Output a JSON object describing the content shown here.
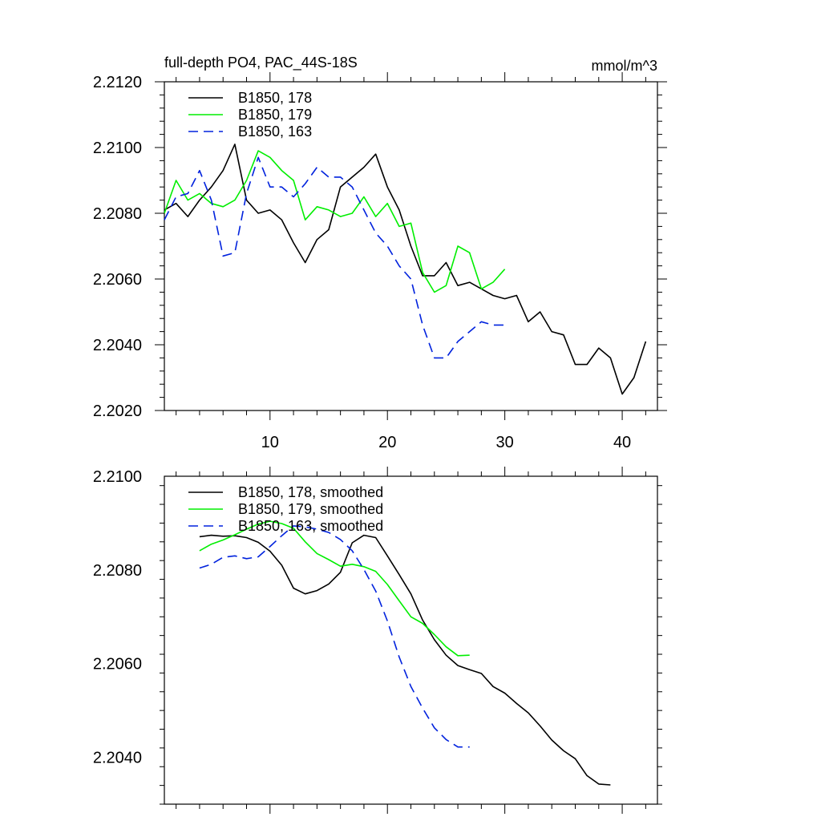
{
  "chart_data": [
    {
      "type": "line",
      "title": "full-depth PO4, PAC_44S-18S",
      "units": "mmol/m^3",
      "xlim": [
        1.0,
        43.0
      ],
      "ylim": [
        2.202,
        2.212
      ],
      "xticks": [
        10,
        20,
        30,
        40
      ],
      "xtick_labels": [
        "10",
        "20",
        "30",
        "40"
      ],
      "yticks": [
        2.202,
        2.204,
        2.206,
        2.208,
        2.21,
        2.212
      ],
      "ytick_labels": [
        "2.2020",
        "2.2040",
        "2.2060",
        "2.2080",
        "2.2100",
        "2.2120"
      ],
      "legend_position": "top-left",
      "series": [
        {
          "name": "B1850, 178",
          "color": "#000000",
          "dash": "solid",
          "x": [
            1,
            2,
            3,
            4,
            5,
            6,
            7,
            8,
            9,
            10,
            11,
            12,
            13,
            14,
            15,
            16,
            17,
            18,
            19,
            20,
            21,
            22,
            23,
            24,
            25,
            26,
            27,
            28,
            29,
            30,
            31,
            32,
            33,
            34,
            35,
            36,
            37,
            38,
            39,
            40,
            41,
            42
          ],
          "values": [
            2.2081,
            2.2083,
            2.2079,
            2.2084,
            2.2088,
            2.2093,
            2.2101,
            2.2084,
            2.208,
            2.2081,
            2.2078,
            2.2071,
            2.2065,
            2.2072,
            2.2075,
            2.2088,
            2.2091,
            2.2094,
            2.2098,
            2.2088,
            2.2081,
            2.207,
            2.2061,
            2.2061,
            2.2065,
            2.2058,
            2.2059,
            2.2057,
            2.2055,
            2.2054,
            2.2055,
            2.2047,
            2.205,
            2.2044,
            2.2043,
            2.2034,
            2.2034,
            2.2039,
            2.2036,
            2.2025,
            2.203,
            2.2041
          ]
        },
        {
          "name": "B1850, 179",
          "color": "#00ee00",
          "dash": "solid",
          "x": [
            1,
            2,
            3,
            4,
            5,
            6,
            7,
            8,
            9,
            10,
            11,
            12,
            13,
            14,
            15,
            16,
            17,
            18,
            19,
            20,
            21,
            22,
            23,
            24,
            25,
            26,
            27,
            28,
            29,
            30
          ],
          "values": [
            2.208,
            2.209,
            2.2084,
            2.2086,
            2.2083,
            2.2082,
            2.2084,
            2.209,
            2.2099,
            2.2097,
            2.2093,
            2.209,
            2.2078,
            2.2082,
            2.2081,
            2.2079,
            2.208,
            2.2085,
            2.2079,
            2.2083,
            2.2076,
            2.2077,
            2.2062,
            2.2056,
            2.2058,
            2.207,
            2.2068,
            2.2057,
            2.2059,
            2.2063
          ]
        },
        {
          "name": "B1850, 163",
          "color": "#0022dd",
          "dash": "dashed",
          "x": [
            1,
            2,
            3,
            4,
            5,
            6,
            7,
            8,
            9,
            10,
            11,
            12,
            13,
            14,
            15,
            16,
            17,
            18,
            19,
            20,
            21,
            22,
            23,
            24,
            25,
            26,
            27,
            28,
            29,
            30
          ],
          "values": [
            2.2078,
            2.2085,
            2.2086,
            2.2093,
            2.2084,
            2.2067,
            2.2068,
            2.2086,
            2.2097,
            2.2088,
            2.2088,
            2.2085,
            2.2089,
            2.2094,
            2.2091,
            2.2091,
            2.2088,
            2.2081,
            2.2074,
            2.207,
            2.2064,
            2.206,
            2.2046,
            2.2036,
            2.2036,
            2.2041,
            2.2044,
            2.2047,
            2.2046,
            2.2046
          ]
        }
      ]
    },
    {
      "type": "line",
      "xlim": [
        1.0,
        43.0
      ],
      "ylim": [
        2.203,
        2.21
      ],
      "xticks": [
        10,
        20,
        30,
        40
      ],
      "yticks": [
        2.204,
        2.206,
        2.208,
        2.21
      ],
      "ytick_labels": [
        "2.2040",
        "2.2060",
        "2.2080",
        "2.2100"
      ],
      "legend_position": "top-left",
      "series": [
        {
          "name": "B1850, 178, smoothed",
          "color": "#000000",
          "dash": "solid",
          "x": [
            4,
            5,
            6,
            7,
            8,
            9,
            10,
            11,
            12,
            13,
            14,
            15,
            16,
            17,
            18,
            19,
            20,
            21,
            22,
            23,
            24,
            25,
            26,
            27,
            28,
            29,
            30,
            31,
            32,
            33,
            34,
            35,
            36,
            37,
            38,
            39
          ],
          "values": [
            2.20871,
            2.20874,
            2.20872,
            2.20873,
            2.20869,
            2.20859,
            2.2084,
            2.2081,
            2.20761,
            2.20749,
            2.20756,
            2.2077,
            2.20795,
            2.20858,
            2.20874,
            2.20869,
            2.2083,
            2.2079,
            2.20749,
            2.20693,
            2.20651,
            2.20618,
            2.20596,
            2.20587,
            2.20579,
            2.20551,
            2.20537,
            2.20515,
            2.20495,
            2.20467,
            2.20437,
            2.20414,
            2.20397,
            2.20361,
            2.20343,
            2.20341
          ]
        },
        {
          "name": "B1850, 179, smoothed",
          "color": "#00ee00",
          "dash": "solid",
          "x": [
            4,
            5,
            6,
            7,
            8,
            9,
            10,
            11,
            12,
            13,
            14,
            15,
            16,
            17,
            18,
            19,
            20,
            21,
            22,
            23,
            24,
            25,
            26,
            27
          ],
          "values": [
            2.20841,
            2.20855,
            2.20864,
            2.20875,
            2.20887,
            2.20898,
            2.20904,
            2.20899,
            2.20889,
            2.2086,
            2.20835,
            2.20822,
            2.20808,
            2.20812,
            2.20807,
            2.20797,
            2.20769,
            2.20734,
            2.207,
            2.20686,
            2.20662,
            2.20636,
            2.20617,
            2.20618
          ]
        },
        {
          "name": "B1850, 163, smoothed",
          "color": "#0022dd",
          "dash": "dashed",
          "x": [
            4,
            5,
            6,
            7,
            8,
            9,
            10,
            11,
            12,
            13,
            14,
            15,
            16,
            17,
            18,
            19,
            20,
            21,
            22,
            23,
            24,
            25,
            26,
            27
          ],
          "values": [
            2.20804,
            2.20812,
            2.20827,
            2.2083,
            2.20824,
            2.20828,
            2.2085,
            2.20873,
            2.20894,
            2.20892,
            2.20887,
            2.2088,
            2.20865,
            2.20841,
            2.20801,
            2.20755,
            2.20691,
            2.20614,
            2.20551,
            2.20505,
            2.20463,
            2.20438,
            2.20422,
            2.20422
          ]
        }
      ]
    }
  ]
}
